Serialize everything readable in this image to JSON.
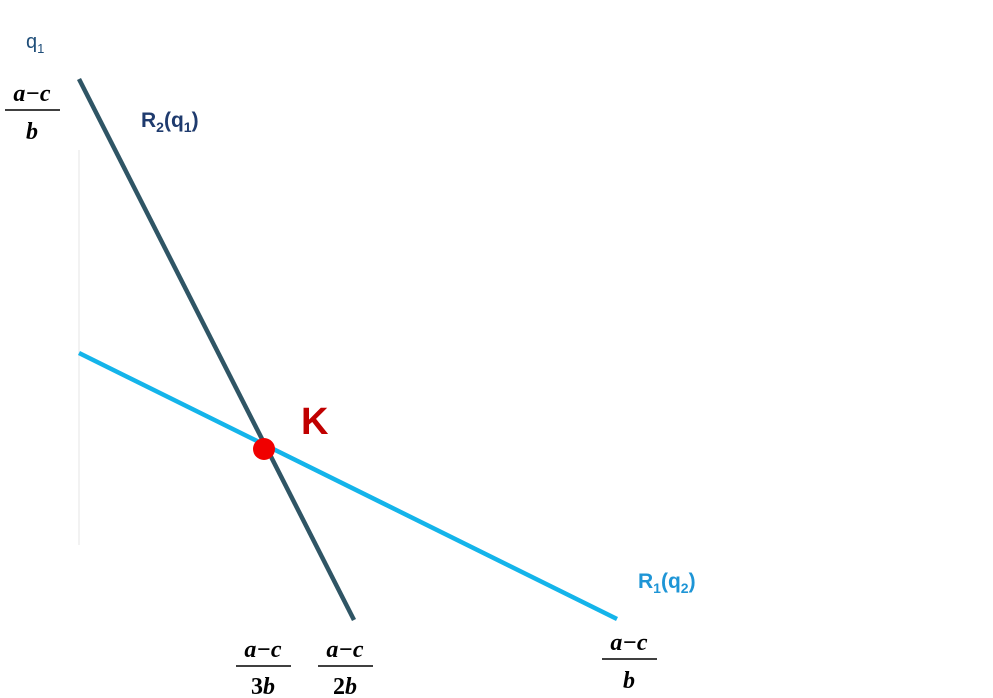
{
  "axis": {
    "y_label": "q",
    "y_label_sub": "1"
  },
  "curves": {
    "r2": {
      "label_main": "R",
      "label_sub1": "2",
      "label_mid": "(q",
      "label_sub2": "1",
      "label_end": ")",
      "color": "#2f5565"
    },
    "r1": {
      "label_main": "R",
      "label_sub1": "1",
      "label_mid": "(q",
      "label_sub2": "2",
      "label_end": ")",
      "color": "#14b4ea"
    }
  },
  "equilibrium": {
    "label": "K",
    "label_color": "#c00000",
    "dot_color": "#f00000"
  },
  "fractions": {
    "y_intercept": {
      "num": "a−c",
      "den": "b"
    },
    "x_k": {
      "num": "a−c",
      "den_coef": "3",
      "den_var": "b"
    },
    "x_r2": {
      "num": "a−c",
      "den_coef": "2",
      "den_var": "b"
    },
    "x_r1": {
      "num": "a−c",
      "den": "b"
    }
  },
  "axis_color": "#f2f2f2"
}
